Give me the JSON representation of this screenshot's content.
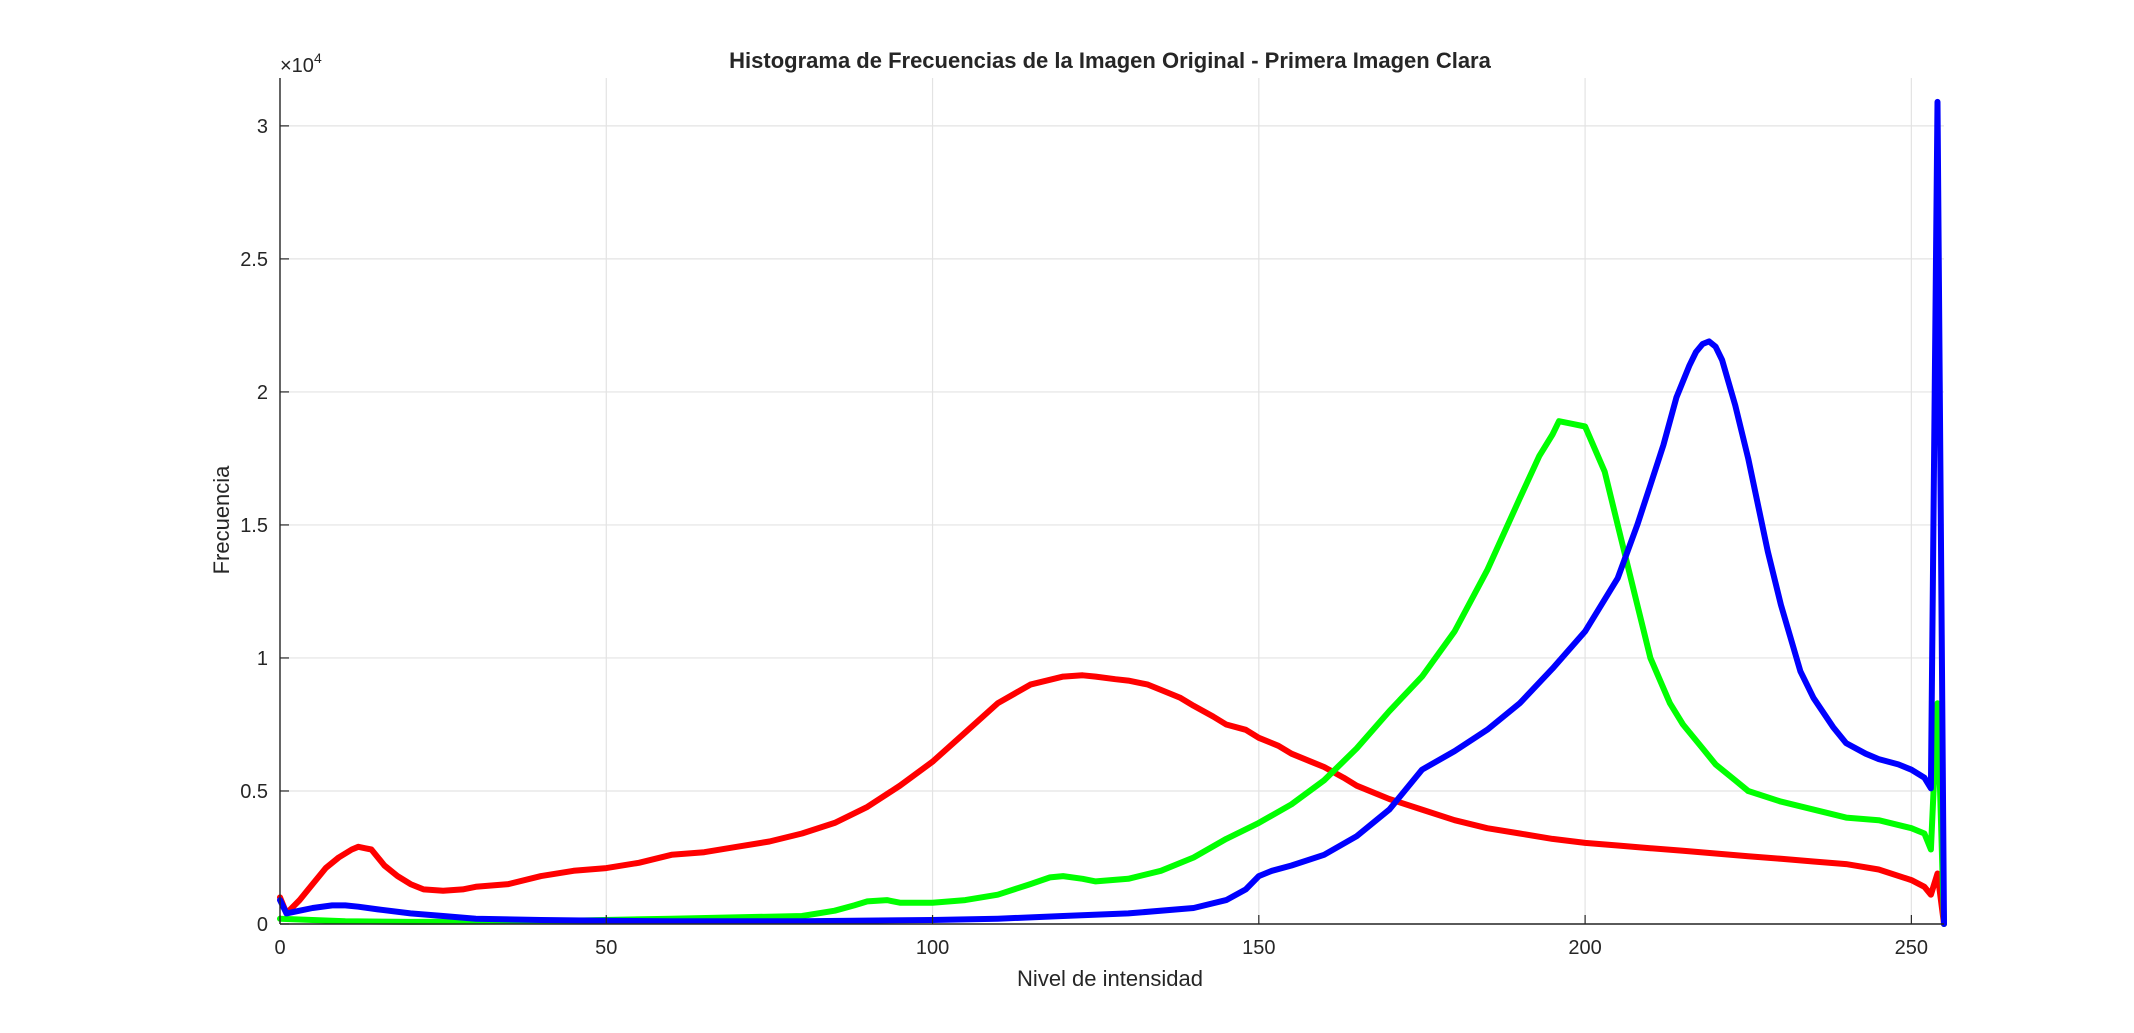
{
  "chart_data": {
    "type": "line",
    "title": "Histograma de Frecuencias de la Imagen Original - Primera Imagen Clara",
    "xlabel": "Nivel de intensidad",
    "ylabel": "Frecuencia",
    "y_exponent_label": "×10",
    "y_exponent_power": "4",
    "xlim": [
      0,
      255
    ],
    "ylim": [
      0,
      31800
    ],
    "grid": true,
    "x_ticks": [
      0,
      50,
      100,
      150,
      200,
      250
    ],
    "x_tick_labels": [
      "0",
      "50",
      "100",
      "150",
      "200",
      "250"
    ],
    "y_ticks": [
      0,
      5000,
      10000,
      15000,
      20000,
      25000,
      30000
    ],
    "y_tick_labels": [
      "0",
      "0.5",
      "1",
      "1.5",
      "2",
      "2.5",
      "3"
    ],
    "series": [
      {
        "color": "#ff0000",
        "x": [
          0,
          1,
          3,
          5,
          7,
          9,
          11,
          12,
          13,
          14,
          15,
          16,
          18,
          20,
          22,
          25,
          28,
          30,
          35,
          40,
          45,
          50,
          55,
          60,
          65,
          70,
          75,
          80,
          85,
          90,
          95,
          100,
          105,
          110,
          115,
          120,
          123,
          125,
          128,
          130,
          133,
          135,
          138,
          140,
          143,
          145,
          148,
          150,
          153,
          155,
          158,
          160,
          163,
          165,
          170,
          175,
          180,
          185,
          190,
          195,
          200,
          205,
          210,
          215,
          220,
          225,
          230,
          235,
          240,
          245,
          250,
          252,
          253,
          254,
          255
        ],
        "y": [
          1000,
          400,
          900,
          1500,
          2100,
          2500,
          2800,
          2900,
          2850,
          2800,
          2500,
          2200,
          1800,
          1500,
          1300,
          1250,
          1300,
          1400,
          1500,
          1800,
          2000,
          2100,
          2300,
          2600,
          2700,
          2900,
          3100,
          3400,
          3800,
          4400,
          5200,
          6100,
          7200,
          8300,
          9000,
          9300,
          9350,
          9300,
          9200,
          9150,
          9000,
          8800,
          8500,
          8200,
          7800,
          7500,
          7300,
          7000,
          6700,
          6400,
          6100,
          5900,
          5500,
          5200,
          4700,
          4300,
          3900,
          3600,
          3400,
          3200,
          3050,
          2950,
          2850,
          2750,
          2650,
          2550,
          2450,
          2350,
          2250,
          2050,
          1650,
          1400,
          1100,
          1900,
          0
        ]
      },
      {
        "color": "#00ff00",
        "x": [
          0,
          5,
          10,
          20,
          40,
          60,
          80,
          85,
          88,
          90,
          93,
          95,
          100,
          105,
          110,
          115,
          118,
          120,
          123,
          125,
          130,
          135,
          140,
          145,
          150,
          155,
          160,
          165,
          170,
          175,
          180,
          185,
          190,
          193,
          195,
          196,
          198,
          200,
          203,
          205,
          208,
          210,
          213,
          215,
          218,
          220,
          223,
          225,
          230,
          235,
          240,
          245,
          250,
          252,
          253,
          254,
          255
        ],
        "y": [
          200,
          150,
          100,
          80,
          100,
          200,
          300,
          500,
          700,
          850,
          900,
          800,
          800,
          900,
          1100,
          1500,
          1750,
          1800,
          1700,
          1600,
          1700,
          2000,
          2500,
          3200,
          3800,
          4500,
          5400,
          6600,
          8000,
          9300,
          11000,
          13300,
          16000,
          17600,
          18400,
          18900,
          18800,
          18700,
          17000,
          15000,
          12000,
          10000,
          8300,
          7500,
          6600,
          6000,
          5400,
          5000,
          4600,
          4300,
          4000,
          3900,
          3600,
          3400,
          2800,
          8300,
          0
        ]
      },
      {
        "color": "#0000ff",
        "x": [
          0,
          1,
          3,
          5,
          8,
          10,
          12,
          15,
          20,
          25,
          30,
          40,
          50,
          60,
          80,
          100,
          110,
          120,
          130,
          140,
          145,
          148,
          150,
          152,
          155,
          160,
          165,
          170,
          175,
          180,
          185,
          190,
          195,
          200,
          205,
          208,
          210,
          212,
          214,
          216,
          217,
          218,
          219,
          220,
          221,
          223,
          225,
          228,
          230,
          233,
          235,
          238,
          240,
          243,
          245,
          248,
          250,
          252,
          253,
          254,
          255
        ],
        "y": [
          900,
          400,
          500,
          600,
          700,
          700,
          650,
          550,
          400,
          300,
          200,
          150,
          120,
          100,
          100,
          150,
          200,
          300,
          400,
          600,
          900,
          1300,
          1800,
          2000,
          2200,
          2600,
          3300,
          4300,
          5800,
          6500,
          7300,
          8300,
          9600,
          11000,
          13000,
          15000,
          16500,
          18000,
          19800,
          21000,
          21500,
          21800,
          21900,
          21700,
          21200,
          19500,
          17500,
          14000,
          12000,
          9500,
          8500,
          7400,
          6800,
          6400,
          6200,
          6000,
          5800,
          5500,
          5100,
          30900,
          0
        ]
      }
    ]
  }
}
